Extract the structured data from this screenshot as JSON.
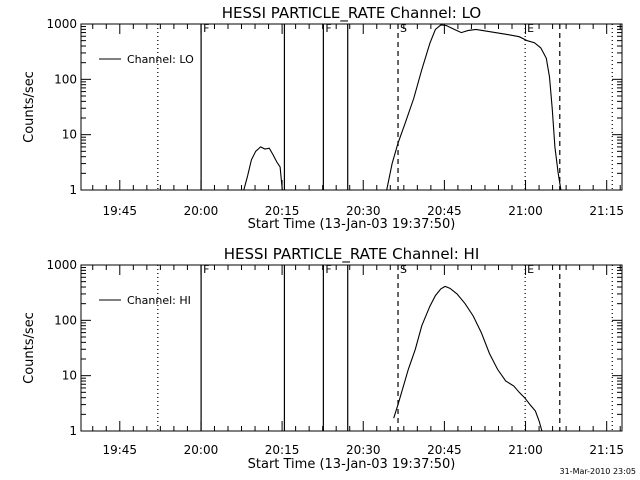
{
  "chart_data": [
    {
      "type": "line",
      "title": "HESSI PARTICLE_RATE Channel: LO",
      "xlabel": "Start Time (13-Jan-03 19:37:50)",
      "ylabel": "Counts/sec",
      "yscale": "log",
      "ylim": [
        1,
        1000
      ],
      "yticks": [
        "1",
        "10",
        "100",
        "1000"
      ],
      "xlim_min": [
        0,
        100
      ],
      "xticks": [
        {
          "min": 7.17,
          "label": "19:45"
        },
        {
          "min": 22.17,
          "label": "20:00"
        },
        {
          "min": 37.17,
          "label": "20:15"
        },
        {
          "min": 52.17,
          "label": "20:30"
        },
        {
          "min": 67.17,
          "label": "20:45"
        },
        {
          "min": 82.17,
          "label": "21:00"
        },
        {
          "min": 97.17,
          "label": "21:15"
        }
      ],
      "markers": [
        {
          "min": 14.2,
          "style": "dotted",
          "label": ""
        },
        {
          "min": 22.2,
          "style": "solid",
          "label": "F"
        },
        {
          "min": 37.6,
          "style": "solid",
          "label": ""
        },
        {
          "min": 44.8,
          "style": "solid",
          "label": "F"
        },
        {
          "min": 49.3,
          "style": "solid",
          "label": ""
        },
        {
          "min": 58.6,
          "style": "dashed",
          "label": "S"
        },
        {
          "min": 82.1,
          "style": "dotted",
          "label": "E"
        },
        {
          "min": 88.5,
          "style": "dashed",
          "label": ""
        },
        {
          "min": 98.2,
          "style": "dotted",
          "label": ""
        }
      ],
      "legend": "top-left",
      "series": [
        {
          "name": "Channel: LO",
          "segments": [
            [
              [
                30.1,
                1
              ],
              [
                30.8,
                1.8
              ],
              [
                31.5,
                3.5
              ],
              [
                32.3,
                5
              ],
              [
                33.2,
                6
              ],
              [
                34.0,
                5.5
              ],
              [
                34.8,
                5.7
              ],
              [
                35.5,
                4.3
              ],
              [
                36.2,
                3.2
              ],
              [
                36.8,
                2.6
              ],
              [
                37.2,
                1
              ]
            ],
            [
              [
                56.5,
                1
              ],
              [
                57.5,
                3
              ],
              [
                58.6,
                7
              ],
              [
                60.0,
                17
              ],
              [
                61.5,
                45
              ],
              [
                63.0,
                150
              ],
              [
                64.5,
                450
              ],
              [
                65.5,
                800
              ],
              [
                66.5,
                960
              ],
              [
                67.5,
                940
              ],
              [
                69.0,
                800
              ],
              [
                70.3,
                700
              ],
              [
                71.5,
                760
              ],
              [
                73.0,
                800
              ],
              [
                75.0,
                740
              ],
              [
                77.0,
                690
              ],
              [
                79.0,
                640
              ],
              [
                81.0,
                590
              ],
              [
                82.5,
                500
              ],
              [
                83.8,
                460
              ],
              [
                85.0,
                370
              ],
              [
                86.0,
                240
              ],
              [
                86.6,
                110
              ],
              [
                87.1,
                30
              ],
              [
                87.6,
                6
              ],
              [
                88.2,
                2
              ],
              [
                88.7,
                1
              ]
            ]
          ]
        }
      ]
    },
    {
      "type": "line",
      "title": "HESSI PARTICLE_RATE Channel: HI",
      "xlabel": "Start Time (13-Jan-03 19:37:50)",
      "ylabel": "Counts/sec",
      "yscale": "log",
      "ylim": [
        1,
        1000
      ],
      "yticks": [
        "1",
        "10",
        "100",
        "1000"
      ],
      "xlim_min": [
        0,
        100
      ],
      "xticks": [
        {
          "min": 7.17,
          "label": "19:45"
        },
        {
          "min": 22.17,
          "label": "20:00"
        },
        {
          "min": 37.17,
          "label": "20:15"
        },
        {
          "min": 52.17,
          "label": "20:30"
        },
        {
          "min": 67.17,
          "label": "20:45"
        },
        {
          "min": 82.17,
          "label": "21:00"
        },
        {
          "min": 97.17,
          "label": "21:15"
        }
      ],
      "markers": [
        {
          "min": 14.2,
          "style": "dotted",
          "label": ""
        },
        {
          "min": 22.2,
          "style": "solid",
          "label": "F"
        },
        {
          "min": 37.6,
          "style": "solid",
          "label": ""
        },
        {
          "min": 44.8,
          "style": "solid",
          "label": "F"
        },
        {
          "min": 49.3,
          "style": "solid",
          "label": ""
        },
        {
          "min": 58.6,
          "style": "dashed",
          "label": "S"
        },
        {
          "min": 82.1,
          "style": "dotted",
          "label": "E"
        },
        {
          "min": 88.5,
          "style": "dashed",
          "label": ""
        },
        {
          "min": 98.2,
          "style": "dotted",
          "label": ""
        }
      ],
      "legend": "top-left",
      "series": [
        {
          "name": "Channel: HI",
          "segments": [
            [
              [
                57.8,
                1.7
              ],
              [
                58.6,
                3
              ],
              [
                59.5,
                6
              ],
              [
                60.5,
                13
              ],
              [
                61.8,
                30
              ],
              [
                63.0,
                80
              ],
              [
                64.5,
                180
              ],
              [
                65.5,
                280
              ],
              [
                66.5,
                370
              ],
              [
                67.3,
                410
              ],
              [
                68.2,
                380
              ],
              [
                69.5,
                300
              ],
              [
                71.0,
                200
              ],
              [
                72.5,
                120
              ],
              [
                74.0,
                60
              ],
              [
                75.5,
                25
              ],
              [
                77.0,
                13
              ],
              [
                78.5,
                8
              ],
              [
                80.0,
                6.5
              ],
              [
                81.0,
                5
              ],
              [
                82.0,
                4
              ],
              [
                83.0,
                3
              ],
              [
                84.0,
                2.3
              ],
              [
                84.7,
                1.5
              ],
              [
                85.2,
                1
              ]
            ]
          ]
        }
      ]
    }
  ],
  "footer": {
    "timestamp": "31-Mar-2010 23:05"
  }
}
